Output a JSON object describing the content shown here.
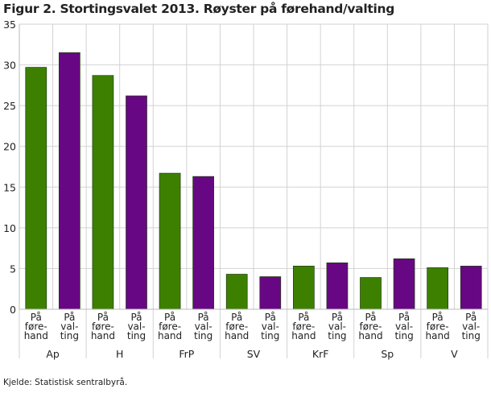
{
  "title": "Figur 2. Stortingsvalet 2013. Røyster på førehand/valting",
  "source": "Kjelde: Statistisk sentralbyrå.",
  "chart_data": {
    "type": "bar",
    "title": "Figur 2. Stortingsvalet 2013. Røyster på førehand/valting",
    "groups": [
      "Ap",
      "H",
      "FrP",
      "SV",
      "KrF",
      "Sp",
      "V"
    ],
    "subcategories": [
      [
        "På",
        "føre-",
        "hand"
      ],
      [
        "På",
        "val-",
        "ting"
      ]
    ],
    "series": [
      {
        "values": [
          29.7,
          28.7,
          16.7,
          4.3,
          5.3,
          3.9,
          5.1
        ],
        "color": "#3d8000"
      },
      {
        "values": [
          31.5,
          26.2,
          16.3,
          4.0,
          5.7,
          6.2,
          5.3
        ],
        "color": "#680784"
      }
    ],
    "ylim": [
      0,
      35
    ],
    "yticks": [
      0,
      5,
      10,
      15,
      20,
      25,
      30,
      35
    ],
    "grid": true,
    "legend": "none"
  }
}
